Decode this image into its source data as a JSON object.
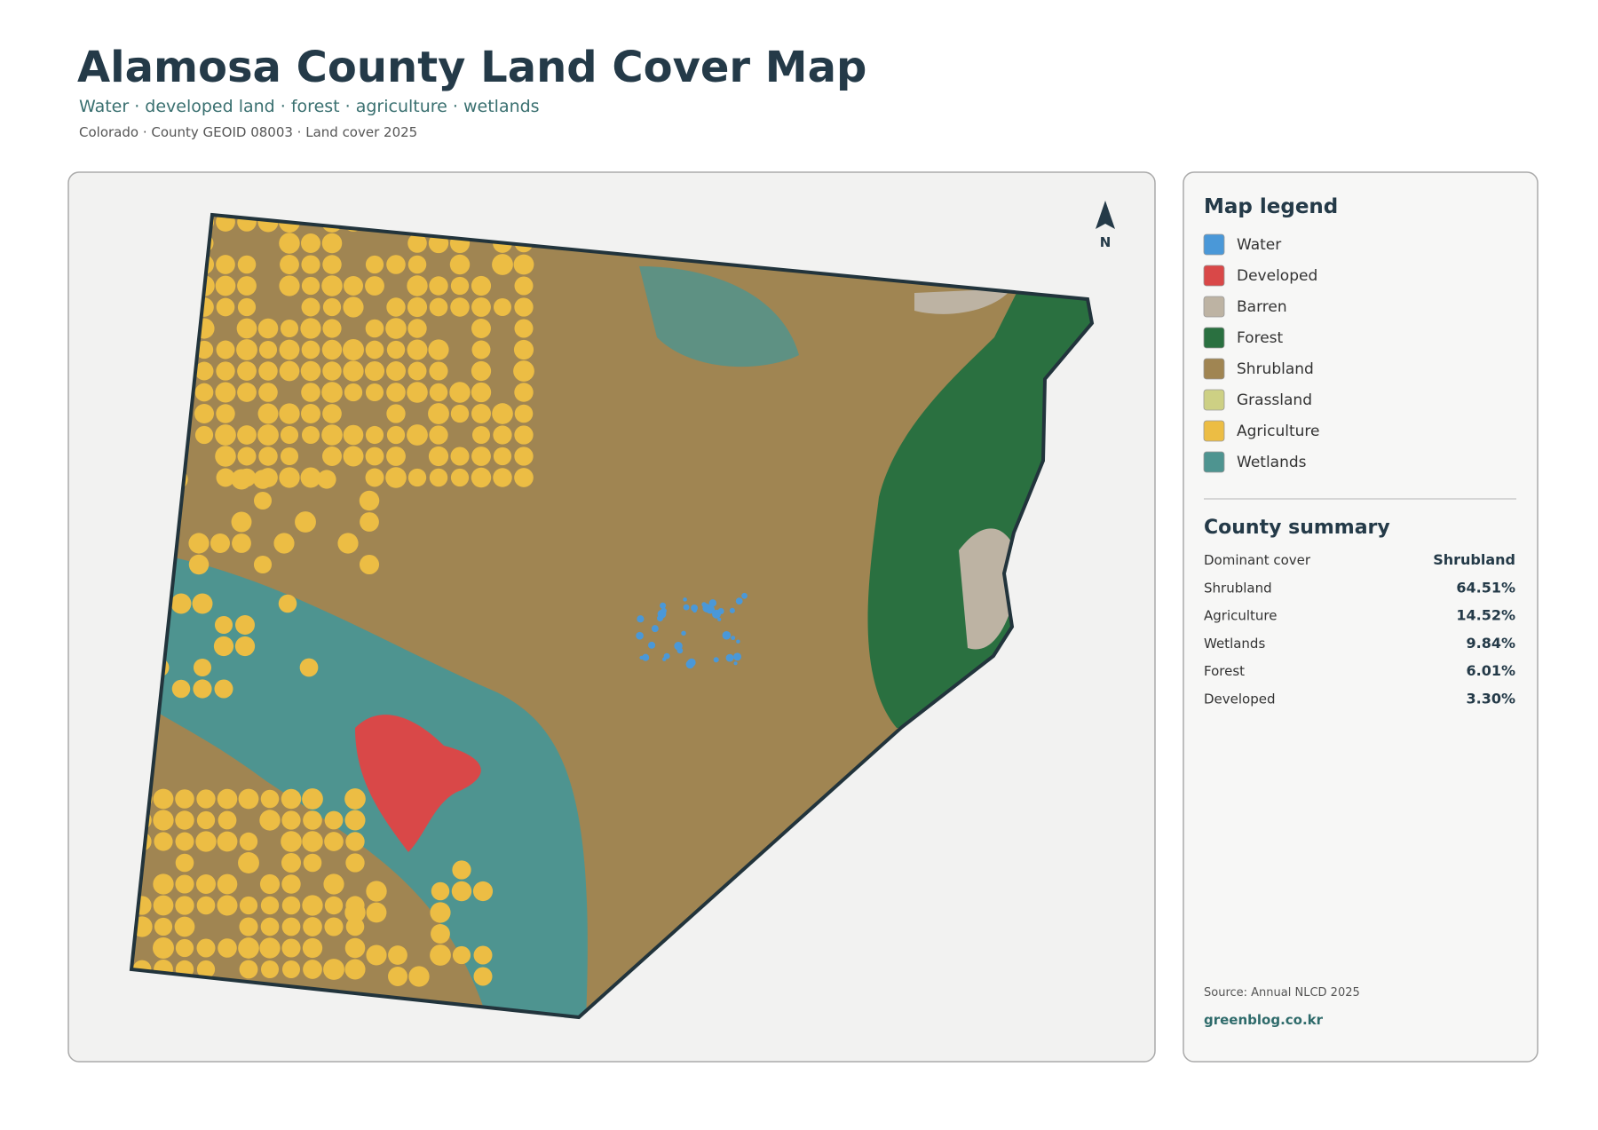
{
  "header": {
    "title": "Alamosa County Land Cover Map",
    "subtitle": "Water · developed land · forest · agriculture · wetlands",
    "meta": "Colorado · County GEOID 08003 · Land cover 2025"
  },
  "map": {
    "north_label": "N"
  },
  "legend": {
    "title": "Map legend",
    "items": [
      {
        "label": "Water",
        "color": "#4a98d8"
      },
      {
        "label": "Developed",
        "color": "#d94848"
      },
      {
        "label": "Barren",
        "color": "#bdb3a3"
      },
      {
        "label": "Forest",
        "color": "#2a7040"
      },
      {
        "label": "Shrubland",
        "color": "#a08552"
      },
      {
        "label": "Grassland",
        "color": "#cdd084"
      },
      {
        "label": "Agriculture",
        "color": "#ecbd44"
      },
      {
        "label": "Wetlands",
        "color": "#4e9490"
      }
    ]
  },
  "summary": {
    "title": "County summary",
    "rows": [
      [
        "Dominant cover",
        "Shrubland"
      ],
      [
        "Shrubland",
        "64.51%"
      ],
      [
        "Agriculture",
        "14.52%"
      ],
      [
        "Wetlands",
        "9.84%"
      ],
      [
        "Forest",
        "6.01%"
      ],
      [
        "Developed",
        "3.30%"
      ]
    ]
  },
  "footer": {
    "source": "Source: Annual NLCD 2025",
    "site": "greenblog.co.kr"
  }
}
